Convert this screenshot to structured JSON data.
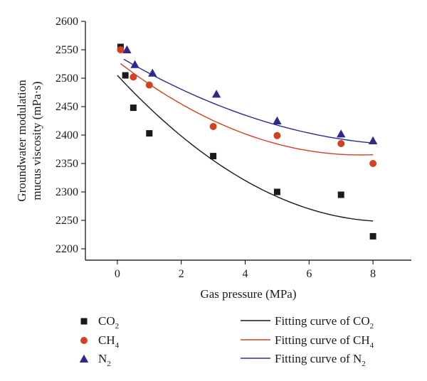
{
  "chart_data": {
    "type": "scatter",
    "xlabel": "Gas pressure (MPa)",
    "ylabel_line1": "Groundwater modulation",
    "ylabel_line2": "mucus viscosity (mPa·s)",
    "xlim": [
      -1,
      9.2
    ],
    "ylim": [
      2180,
      2600
    ],
    "x_ticks": [
      0,
      2,
      4,
      6,
      8
    ],
    "y_ticks": [
      2200,
      2250,
      2300,
      2350,
      2400,
      2450,
      2500,
      2550,
      2600
    ],
    "grid": false,
    "legend_position": "bottom",
    "series": [
      {
        "id": "co2",
        "name_base": "CO",
        "name_sub": "2",
        "marker": "square",
        "color": "#1a1a1a",
        "x": [
          0.1,
          0.25,
          0.5,
          1.0,
          3.0,
          5.0,
          7.0,
          8.0
        ],
        "y": [
          2555,
          2505,
          2448,
          2403,
          2363,
          2300,
          2295,
          2222
        ]
      },
      {
        "id": "ch4",
        "name_base": "CH",
        "name_sub": "4",
        "marker": "circle",
        "color": "#d4411e",
        "x": [
          0.1,
          0.5,
          1.0,
          3.0,
          5.0,
          7.0,
          8.0
        ],
        "y": [
          2550,
          2502,
          2488,
          2415,
          2399,
          2385,
          2350
        ]
      },
      {
        "id": "n2",
        "name_base": "N",
        "name_sub": "2",
        "marker": "triangle",
        "color": "#2e2a8c",
        "x": [
          0.3,
          0.55,
          1.1,
          3.1,
          5.0,
          7.0,
          8.0
        ],
        "y": [
          2550,
          2524,
          2509,
          2472,
          2425,
          2402,
          2390
        ]
      }
    ],
    "fits": [
      {
        "id": "fit-co2",
        "name_base": "Fitting curve of CO",
        "name_sub": "2",
        "color": "#1a1a1a",
        "x_range": [
          0,
          8
        ],
        "y_at_0": 2505,
        "y_at_8": 2252,
        "vertex_x": 8.5,
        "vertex_y": 2248
      },
      {
        "id": "fit-ch4",
        "name_base": "Fitting curve of CH",
        "name_sub": "4",
        "color": "#d4411e",
        "x_range": [
          0.1,
          8
        ],
        "y_at_0": 2530,
        "y_at_8": 2366,
        "vertex_x": 7.6,
        "vertex_y": 2365
      },
      {
        "id": "fit-n2",
        "name_base": "Fitting curve of N",
        "name_sub": "2",
        "color": "#2e2a8c",
        "x_range": [
          0.2,
          8
        ],
        "y_at_0": 2540,
        "y_at_8": 2388,
        "vertex_x": 9.5,
        "vertex_y": 2382
      }
    ]
  }
}
